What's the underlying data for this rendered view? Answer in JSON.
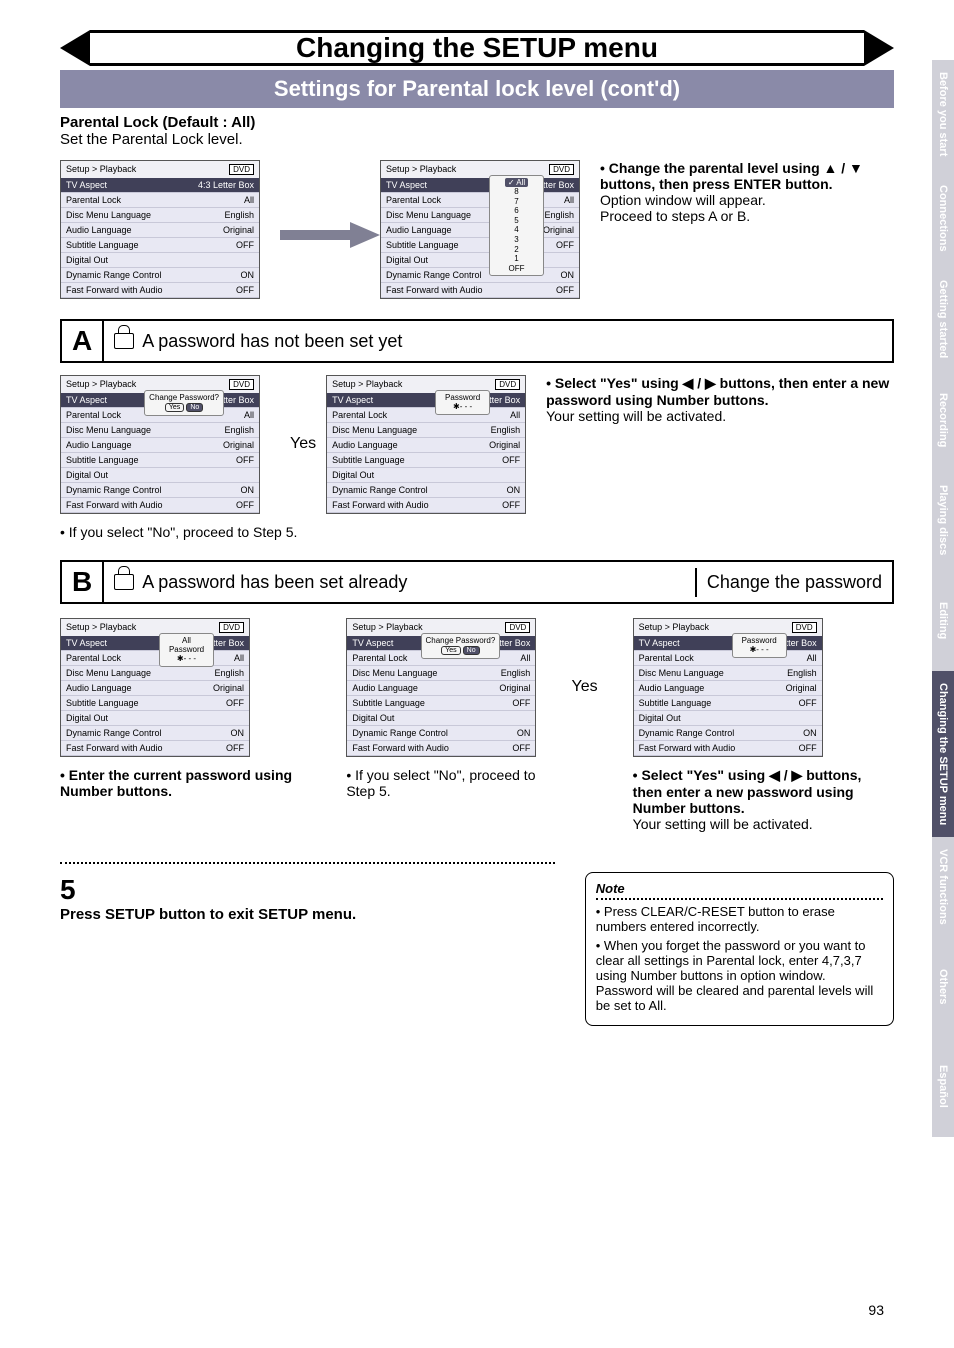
{
  "page_title": "Changing the SETUP menu",
  "sub_banner": "Settings for Parental lock level (cont'd)",
  "heading": "Parental Lock (Default : All)",
  "heading_sub": "Set the Parental Lock level.",
  "page_number": "93",
  "side_tabs": [
    {
      "label": "Before you start",
      "style": "light"
    },
    {
      "label": "Connections",
      "style": "light"
    },
    {
      "label": "Getting started",
      "style": "light"
    },
    {
      "label": "Recording",
      "style": "light"
    },
    {
      "label": "Playing discs",
      "style": "light"
    },
    {
      "label": "Editing",
      "style": "light"
    },
    {
      "label": "Changing the SETUP menu",
      "style": "dark"
    },
    {
      "label": "VCR functions",
      "style": "light"
    },
    {
      "label": "Others",
      "style": "light"
    },
    {
      "label": "Español",
      "style": "light"
    }
  ],
  "setup_base": {
    "breadcrumb": "Setup > Playback",
    "badge": "DVD",
    "rows": [
      {
        "label": "TV Aspect",
        "val": "4:3 Letter Box",
        "hl": true
      },
      {
        "label": "Parental Lock",
        "val": "All"
      },
      {
        "label": "Disc Menu Language",
        "val": "English"
      },
      {
        "label": "Audio Language",
        "val": "Original"
      },
      {
        "label": "Subtitle Language",
        "val": "OFF"
      },
      {
        "label": "Digital Out",
        "val": ""
      },
      {
        "label": "Dynamic Range Control",
        "val": "ON"
      },
      {
        "label": "Fast Forward with Audio",
        "val": "OFF"
      }
    ]
  },
  "level_popup": {
    "title": "All",
    "items": [
      "8",
      "7",
      "6",
      "5",
      "4",
      "3",
      "2",
      "1",
      "OFF"
    ],
    "hl": "All"
  },
  "change_pw_popup": {
    "title": "Change Password?",
    "yes": "Yes",
    "no": "No"
  },
  "password_popup": {
    "title": "Password",
    "mask": "- - -"
  },
  "instr_top": {
    "line1": "• Change the parental level using ▲ / ▼ buttons, then press ENTER button.",
    "line2": "Option window will appear.",
    "line3": "Proceed to steps A or B."
  },
  "step_a": {
    "letter": "A",
    "text": "A password has not been set yet"
  },
  "step_b": {
    "letter": "B",
    "text": "A password has been set already",
    "right": "Change the password"
  },
  "yes_label": "Yes",
  "instr_a_right": {
    "line1": "• Select \"Yes\" using ◀ / ▶ buttons, then enter a new password using Number buttons.",
    "line2": "Your setting will be activated."
  },
  "instr_a_no": "• If you select \"No\", proceed to Step 5.",
  "caption_b1": "• Enter the current password using Number buttons.",
  "caption_b2": "• If you select \"No\", proceed to Step 5.",
  "caption_b3": {
    "line1": "• Select \"Yes\" using ◀ / ▶ buttons, then enter a new password using Number buttons.",
    "line2": "Your setting will be activated."
  },
  "step5": {
    "num": "5",
    "text": "Press SETUP button to exit SETUP menu."
  },
  "note": {
    "title": "Note",
    "items": [
      "Press CLEAR/C-RESET button to erase numbers entered incorrectly.",
      "When you forget the password or you want to clear all settings in Parental lock, enter 4,7,3,7 using Number buttons in option window. Password will be cleared and parental levels will be set to All."
    ]
  },
  "colors": {
    "banner_bg": "#8a8aa8",
    "panel_bg": "#e8e8f3",
    "panel_hl": "#404058"
  }
}
